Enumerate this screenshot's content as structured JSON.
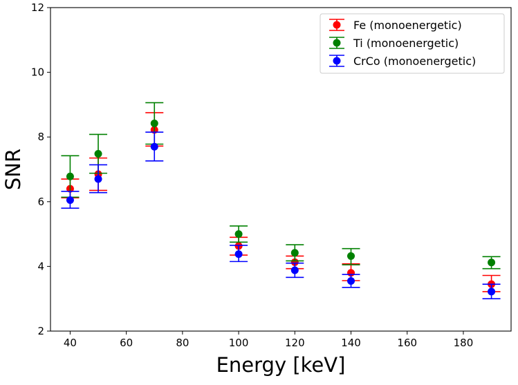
{
  "chart_data": {
    "type": "scatter",
    "title": "",
    "xlabel": "Energy [keV]",
    "ylabel": "SNR",
    "xlim": [
      33,
      197
    ],
    "ylim": [
      2,
      12
    ],
    "xticks": [
      40,
      60,
      80,
      100,
      120,
      140,
      160,
      180
    ],
    "yticks": [
      2,
      4,
      6,
      8,
      10,
      12
    ],
    "grid": false,
    "legend_position": "top-right",
    "series": [
      {
        "name": "Fe (monoenergetic)",
        "color": "#ff0000",
        "x": [
          40,
          50,
          70,
          100,
          120,
          140,
          190
        ],
        "y": [
          6.4,
          6.85,
          8.22,
          4.63,
          4.13,
          3.8,
          3.45
        ],
        "err_low": [
          6.12,
          6.35,
          7.72,
          4.35,
          3.93,
          3.56,
          3.22
        ],
        "err_high": [
          6.7,
          7.35,
          8.75,
          4.9,
          4.32,
          4.08,
          3.72
        ]
      },
      {
        "name": "Ti (monoenergetic)",
        "color": "#008000",
        "x": [
          40,
          50,
          70,
          100,
          120,
          140,
          190
        ],
        "y": [
          6.78,
          7.48,
          8.42,
          5.0,
          4.42,
          4.32,
          4.12
        ],
        "err_low": [
          6.14,
          6.88,
          7.78,
          4.75,
          4.17,
          4.05,
          3.93
        ],
        "err_high": [
          7.42,
          8.08,
          9.06,
          5.25,
          4.67,
          4.55,
          4.3
        ]
      },
      {
        "name": "CrCo (monoenergetic)",
        "color": "#0000ff",
        "x": [
          40,
          50,
          70,
          100,
          120,
          140,
          190
        ],
        "y": [
          6.05,
          6.7,
          7.7,
          4.38,
          3.88,
          3.55,
          3.22
        ],
        "err_low": [
          5.8,
          6.28,
          7.26,
          4.15,
          3.66,
          3.35,
          3.0
        ],
        "err_high": [
          6.32,
          7.14,
          8.15,
          4.65,
          4.1,
          3.75,
          3.45
        ]
      }
    ]
  }
}
